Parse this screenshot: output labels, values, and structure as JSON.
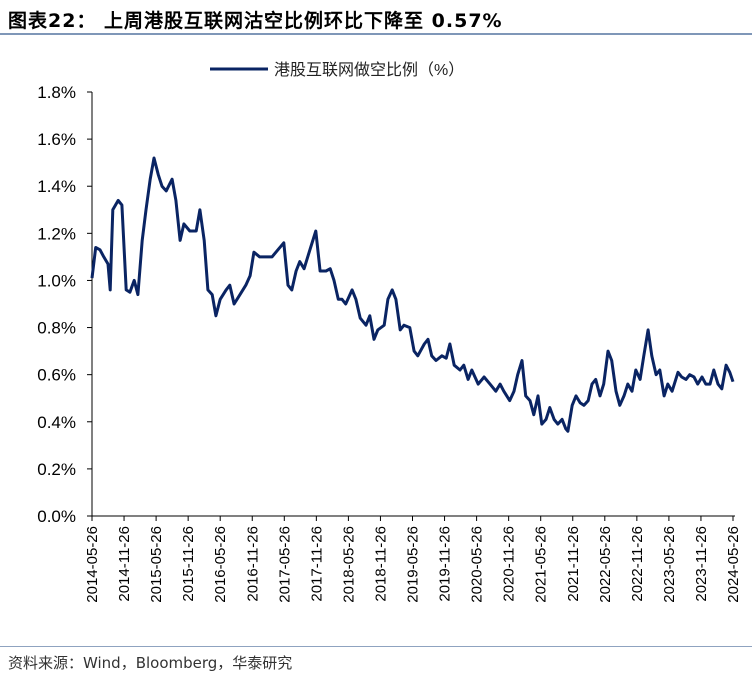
{
  "title": "图表22： 上周港股互联网沽空比例环比下降至 0.57%",
  "source": "资料来源：Wind，Bloomberg，华泰研究",
  "chart_data": {
    "type": "line",
    "title": "图表22： 上周港股互联网沽空比例环比下降至 0.57%",
    "xlabel": "",
    "ylabel": "",
    "x_unit": "months since 2014-05-26",
    "ylim": [
      0,
      1.8
    ],
    "xlim": [
      0,
      120
    ],
    "yticks": [
      "0.0%",
      "0.2%",
      "0.4%",
      "0.6%",
      "0.8%",
      "1.0%",
      "1.2%",
      "1.4%",
      "1.6%",
      "1.8%"
    ],
    "xticks": [
      "2014-05-26",
      "2014-11-26",
      "2015-05-26",
      "2015-11-26",
      "2016-05-26",
      "2016-11-26",
      "2017-05-26",
      "2017-11-26",
      "2018-05-26",
      "2018-11-26",
      "2019-05-26",
      "2019-11-26",
      "2020-05-26",
      "2020-11-26",
      "2021-05-26",
      "2021-11-26",
      "2022-05-26",
      "2022-11-26",
      "2023-05-26",
      "2023-11-26",
      "2024-05-26"
    ],
    "legend_position": "top-center",
    "grid": false,
    "series": [
      {
        "name": "港股互联网做空比例（%）",
        "color": "#0a2463",
        "points": [
          [
            0,
            1.01
          ],
          [
            0.7,
            1.14
          ],
          [
            1.5,
            1.13
          ],
          [
            2.2,
            1.1
          ],
          [
            3.0,
            1.07
          ],
          [
            3.4,
            0.96
          ],
          [
            3.9,
            1.3
          ],
          [
            4.9,
            1.34
          ],
          [
            5.6,
            1.32
          ],
          [
            6.4,
            0.96
          ],
          [
            7.1,
            0.95
          ],
          [
            7.9,
            1.0
          ],
          [
            8.6,
            0.94
          ],
          [
            9.4,
            1.17
          ],
          [
            10.1,
            1.3
          ],
          [
            10.9,
            1.43
          ],
          [
            11.6,
            1.52
          ],
          [
            12.4,
            1.45
          ],
          [
            13.1,
            1.4
          ],
          [
            13.9,
            1.38
          ],
          [
            15.0,
            1.43
          ],
          [
            15.7,
            1.34
          ],
          [
            16.5,
            1.17
          ],
          [
            17.2,
            1.24
          ],
          [
            18.3,
            1.21
          ],
          [
            19.5,
            1.21
          ],
          [
            20.2,
            1.3
          ],
          [
            21.0,
            1.17
          ],
          [
            21.7,
            0.96
          ],
          [
            22.5,
            0.94
          ],
          [
            23.2,
            0.85
          ],
          [
            24.0,
            0.92
          ],
          [
            25.1,
            0.96
          ],
          [
            25.8,
            0.98
          ],
          [
            26.6,
            0.9
          ],
          [
            27.7,
            0.94
          ],
          [
            28.8,
            0.98
          ],
          [
            29.6,
            1.02
          ],
          [
            30.3,
            1.12
          ],
          [
            31.4,
            1.1
          ],
          [
            32.6,
            1.1
          ],
          [
            33.7,
            1.1
          ],
          [
            34.8,
            1.13
          ],
          [
            35.9,
            1.16
          ],
          [
            36.7,
            0.98
          ],
          [
            37.4,
            0.96
          ],
          [
            38.2,
            1.04
          ],
          [
            38.9,
            1.08
          ],
          [
            39.7,
            1.05
          ],
          [
            40.8,
            1.13
          ],
          [
            41.9,
            1.21
          ],
          [
            42.7,
            1.04
          ],
          [
            43.8,
            1.04
          ],
          [
            44.6,
            1.05
          ],
          [
            45.3,
            1.0
          ],
          [
            46.1,
            0.92
          ],
          [
            46.8,
            0.92
          ],
          [
            47.5,
            0.9
          ],
          [
            48.7,
            0.96
          ],
          [
            49.4,
            0.92
          ],
          [
            50.2,
            0.84
          ],
          [
            51.3,
            0.81
          ],
          [
            52.0,
            0.85
          ],
          [
            52.8,
            0.75
          ],
          [
            53.5,
            0.79
          ],
          [
            54.7,
            0.81
          ],
          [
            55.4,
            0.92
          ],
          [
            56.2,
            0.96
          ],
          [
            56.9,
            0.92
          ],
          [
            57.7,
            0.79
          ],
          [
            58.4,
            0.81
          ],
          [
            59.5,
            0.8
          ],
          [
            60.3,
            0.7
          ],
          [
            61.0,
            0.68
          ],
          [
            62.2,
            0.73
          ],
          [
            62.9,
            0.75
          ],
          [
            63.6,
            0.68
          ],
          [
            64.4,
            0.66
          ],
          [
            65.5,
            0.68
          ],
          [
            66.3,
            0.67
          ],
          [
            67.0,
            0.73
          ],
          [
            67.8,
            0.64
          ],
          [
            68.9,
            0.62
          ],
          [
            69.6,
            0.64
          ],
          [
            70.4,
            0.58
          ],
          [
            71.1,
            0.62
          ],
          [
            72.3,
            0.56
          ],
          [
            73.4,
            0.59
          ],
          [
            74.5,
            0.56
          ],
          [
            75.6,
            0.53
          ],
          [
            76.4,
            0.56
          ],
          [
            77.1,
            0.53
          ],
          [
            78.2,
            0.49
          ],
          [
            79.0,
            0.53
          ],
          [
            79.7,
            0.6
          ],
          [
            80.5,
            0.66
          ],
          [
            81.2,
            0.51
          ],
          [
            82.0,
            0.49
          ],
          [
            82.7,
            0.43
          ],
          [
            83.5,
            0.51
          ],
          [
            84.2,
            0.39
          ],
          [
            85.0,
            0.41
          ],
          [
            85.7,
            0.46
          ],
          [
            86.5,
            0.41
          ],
          [
            87.2,
            0.39
          ],
          [
            88.0,
            0.41
          ],
          [
            88.7,
            0.37
          ],
          [
            89.1,
            0.36
          ],
          [
            89.9,
            0.47
          ],
          [
            90.6,
            0.51
          ],
          [
            91.4,
            0.48
          ],
          [
            92.1,
            0.47
          ],
          [
            92.9,
            0.49
          ],
          [
            93.6,
            0.56
          ],
          [
            94.3,
            0.58
          ],
          [
            95.1,
            0.51
          ],
          [
            95.8,
            0.56
          ],
          [
            96.6,
            0.7
          ],
          [
            97.3,
            0.66
          ],
          [
            98.1,
            0.53
          ],
          [
            98.8,
            0.47
          ],
          [
            99.6,
            0.51
          ],
          [
            100.3,
            0.56
          ],
          [
            101.1,
            0.53
          ],
          [
            101.8,
            0.62
          ],
          [
            102.6,
            0.58
          ],
          [
            103.3,
            0.68
          ],
          [
            104.1,
            0.79
          ],
          [
            104.8,
            0.68
          ],
          [
            105.6,
            0.6
          ],
          [
            106.3,
            0.62
          ],
          [
            107.1,
            0.51
          ],
          [
            107.8,
            0.56
          ],
          [
            108.6,
            0.53
          ],
          [
            109.7,
            0.61
          ],
          [
            110.4,
            0.59
          ],
          [
            111.2,
            0.58
          ],
          [
            111.9,
            0.6
          ],
          [
            112.7,
            0.59
          ],
          [
            113.4,
            0.56
          ],
          [
            114.2,
            0.59
          ],
          [
            114.9,
            0.56
          ],
          [
            115.7,
            0.56
          ],
          [
            116.4,
            0.62
          ],
          [
            117.2,
            0.56
          ],
          [
            117.9,
            0.54
          ],
          [
            118.7,
            0.64
          ],
          [
            119.4,
            0.61
          ],
          [
            120,
            0.57
          ]
        ]
      }
    ]
  }
}
